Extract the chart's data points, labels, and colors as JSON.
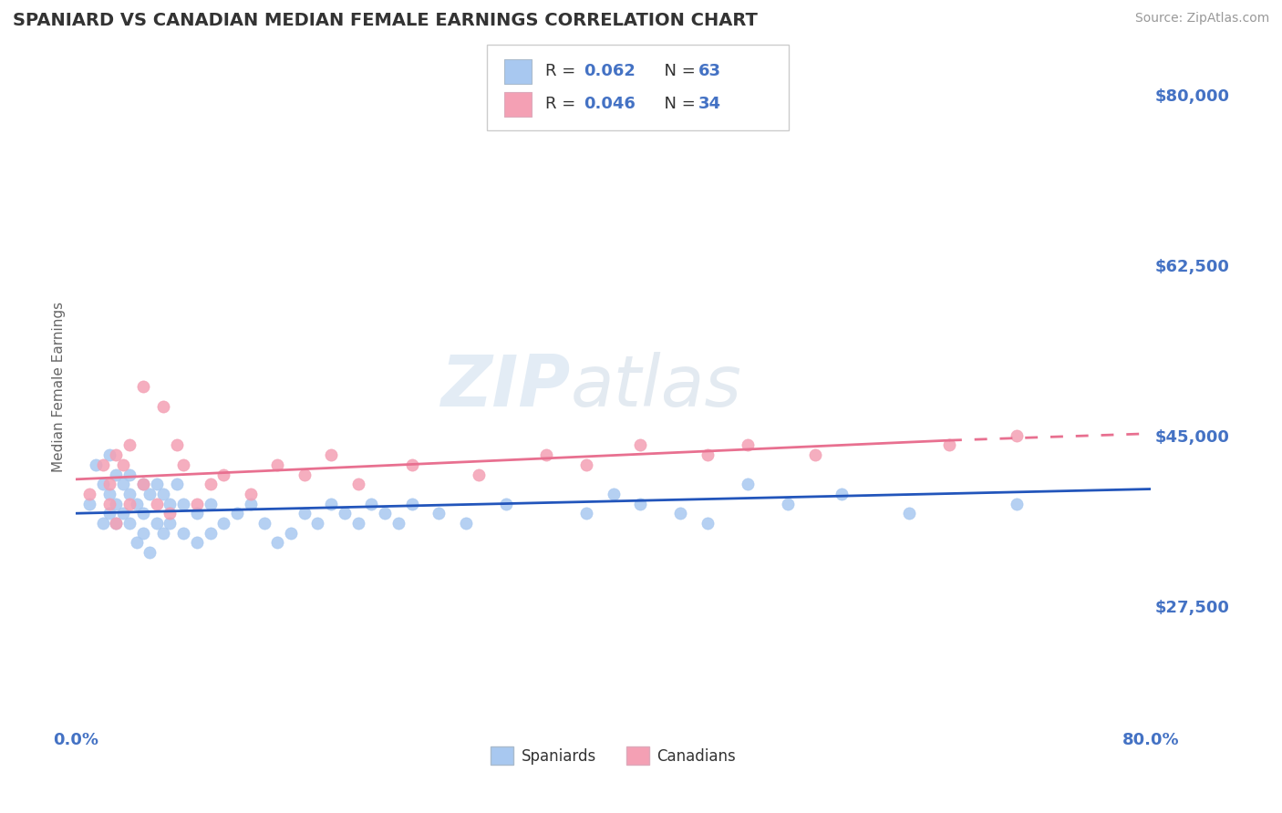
{
  "title": "SPANIARD VS CANADIAN MEDIAN FEMALE EARNINGS CORRELATION CHART",
  "source_text": "Source: ZipAtlas.com",
  "ylabel": "Median Female Earnings",
  "xlim": [
    0.0,
    0.8
  ],
  "ylim": [
    15000,
    85000
  ],
  "yticks": [
    27500,
    45000,
    62500,
    80000
  ],
  "ytick_labels": [
    "$27,500",
    "$45,000",
    "$62,500",
    "$80,000"
  ],
  "xticks": [
    0.0,
    0.8
  ],
  "xtick_labels": [
    "0.0%",
    "80.0%"
  ],
  "watermark_zip": "ZIP",
  "watermark_atlas": "atlas",
  "spaniards_color": "#A8C8F0",
  "canadians_color": "#F4A0B4",
  "trendline_spaniards_color": "#2255BB",
  "trendline_canadians_color": "#E87090",
  "background_color": "#FFFFFF",
  "grid_color": "#CCCCCC",
  "title_color": "#333333",
  "axis_label_color": "#666666",
  "tick_label_color": "#4472C4",
  "spaniards_x": [
    0.01,
    0.015,
    0.02,
    0.02,
    0.025,
    0.025,
    0.025,
    0.03,
    0.03,
    0.03,
    0.035,
    0.035,
    0.04,
    0.04,
    0.04,
    0.045,
    0.045,
    0.05,
    0.05,
    0.05,
    0.055,
    0.055,
    0.06,
    0.06,
    0.065,
    0.065,
    0.07,
    0.07,
    0.075,
    0.08,
    0.08,
    0.09,
    0.09,
    0.1,
    0.1,
    0.11,
    0.12,
    0.13,
    0.14,
    0.15,
    0.16,
    0.17,
    0.18,
    0.19,
    0.2,
    0.21,
    0.22,
    0.23,
    0.24,
    0.25,
    0.27,
    0.29,
    0.32,
    0.38,
    0.4,
    0.42,
    0.45,
    0.47,
    0.5,
    0.53,
    0.57,
    0.62,
    0.7
  ],
  "spaniards_y": [
    38000,
    42000,
    40000,
    36000,
    39000,
    37000,
    43000,
    41000,
    38000,
    36000,
    40000,
    37000,
    39000,
    36000,
    41000,
    38000,
    34000,
    40000,
    37000,
    35000,
    39000,
    33000,
    40000,
    36000,
    39000,
    35000,
    38000,
    36000,
    40000,
    38000,
    35000,
    37000,
    34000,
    38000,
    35000,
    36000,
    37000,
    38000,
    36000,
    34000,
    35000,
    37000,
    36000,
    38000,
    37000,
    36000,
    38000,
    37000,
    36000,
    38000,
    37000,
    36000,
    38000,
    37000,
    39000,
    38000,
    37000,
    36000,
    40000,
    38000,
    39000,
    37000,
    38000
  ],
  "canadians_x": [
    0.01,
    0.02,
    0.025,
    0.025,
    0.03,
    0.03,
    0.035,
    0.04,
    0.04,
    0.05,
    0.05,
    0.06,
    0.065,
    0.07,
    0.075,
    0.08,
    0.09,
    0.1,
    0.11,
    0.13,
    0.15,
    0.17,
    0.19,
    0.21,
    0.25,
    0.3,
    0.35,
    0.38,
    0.42,
    0.47,
    0.5,
    0.55,
    0.65,
    0.7
  ],
  "canadians_y": [
    39000,
    42000,
    40000,
    38000,
    43000,
    36000,
    42000,
    44000,
    38000,
    40000,
    50000,
    38000,
    48000,
    37000,
    44000,
    42000,
    38000,
    40000,
    41000,
    39000,
    42000,
    41000,
    43000,
    40000,
    42000,
    41000,
    43000,
    42000,
    44000,
    43000,
    44000,
    43000,
    44000,
    45000
  ]
}
